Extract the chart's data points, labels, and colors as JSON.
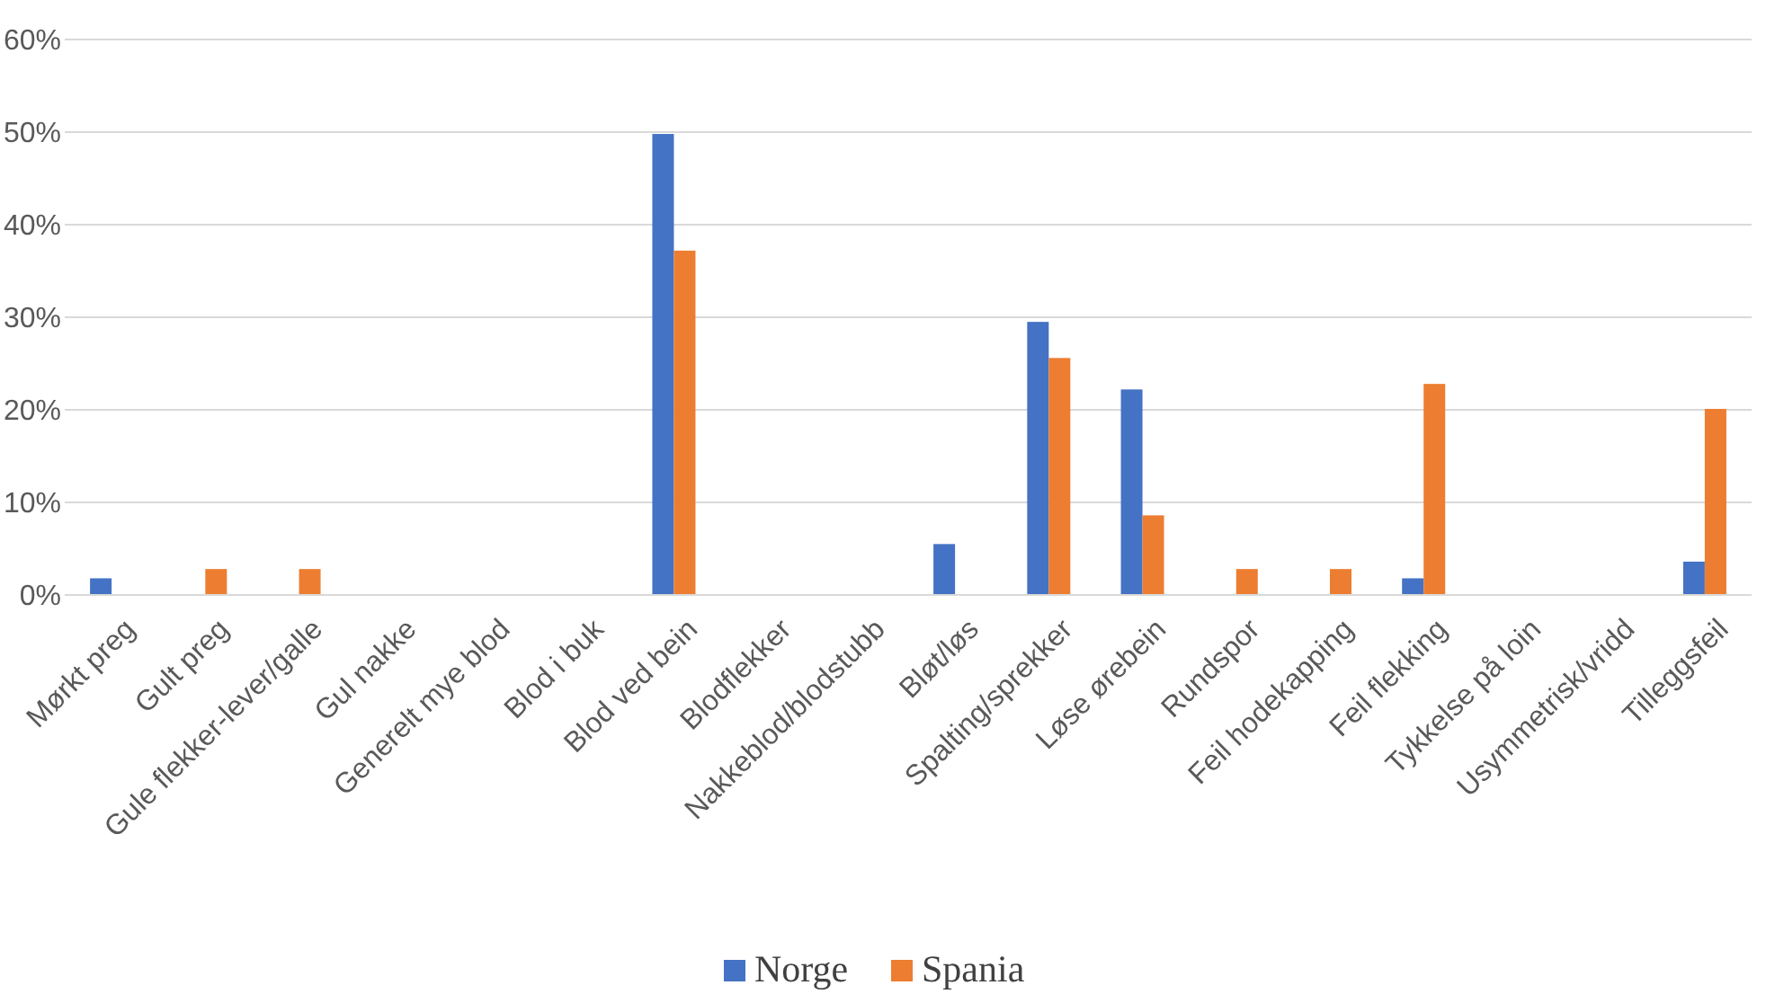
{
  "chart_data": {
    "type": "bar",
    "categories": [
      "Mørkt preg",
      "Gult preg",
      "Gule flekker-lever/galle",
      "Gul nakke",
      "Generelt mye blod",
      "Blod i buk",
      "Blod ved bein",
      "Blodflekker",
      "Nakkeblod/blodstubb",
      "Bløt/løs",
      "Spalting/sprekker",
      "Løse ørebein",
      "Rundspor",
      "Feil hodekapping",
      "Feil flekking",
      "Tykkelse på loin",
      "Usymmetrisk/vridd",
      "Tilleggsfeil"
    ],
    "series": [
      {
        "name": "Norge",
        "color": "#4472c4",
        "values": [
          1.8,
          0,
          0,
          0,
          0,
          0,
          49.8,
          0,
          0,
          5.5,
          29.5,
          22.2,
          0,
          0,
          1.8,
          0,
          0,
          3.6
        ]
      },
      {
        "name": "Spania",
        "color": "#ed7d31",
        "values": [
          0,
          2.8,
          2.8,
          0,
          0,
          0,
          37.2,
          0,
          0,
          0,
          25.6,
          8.6,
          2.8,
          2.8,
          22.8,
          0,
          0,
          20.1
        ]
      }
    ],
    "ylim": [
      0,
      60
    ],
    "yticks": [
      {
        "value": 0,
        "label": "0%"
      },
      {
        "value": 10,
        "label": "10%"
      },
      {
        "value": 20,
        "label": "20%"
      },
      {
        "value": 30,
        "label": "30%"
      },
      {
        "value": 40,
        "label": "40%"
      },
      {
        "value": 50,
        "label": "50%"
      },
      {
        "value": 60,
        "label": "60%"
      }
    ],
    "grid": "y",
    "legend": "bottom"
  }
}
